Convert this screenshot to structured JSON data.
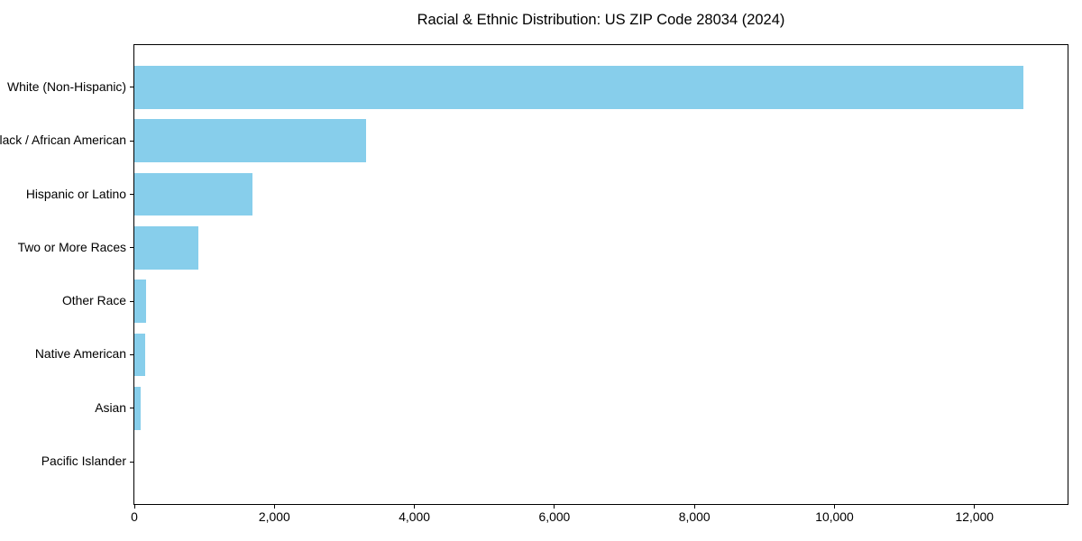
{
  "title": "Racial & Ethnic Distribution: US ZIP Code 28034 (2024)",
  "chart_data": {
    "type": "bar",
    "orientation": "horizontal",
    "title": "Racial & Ethnic Distribution: US ZIP Code 28034 (2024)",
    "xlabel": "",
    "ylabel": "",
    "categories": [
      "White (Non-Hispanic)",
      "Black / African American",
      "Hispanic or Latino",
      "Two or More Races",
      "Other Race",
      "Native American",
      "Asian",
      "Pacific Islander"
    ],
    "values": [
      12694,
      3315,
      1683,
      912,
      167,
      152,
      95,
      0
    ],
    "xlim": [
      0,
      13329
    ],
    "xticks": [
      0,
      2000,
      4000,
      6000,
      8000,
      10000,
      12000
    ],
    "xtick_labels": [
      "0",
      "2,000",
      "4,000",
      "6,000",
      "8,000",
      "10,000",
      "12,000"
    ],
    "grid": false,
    "legend": null,
    "bar_color": "#87CEEB",
    "spine_color": "#000000",
    "background_color": "#ffffff"
  }
}
